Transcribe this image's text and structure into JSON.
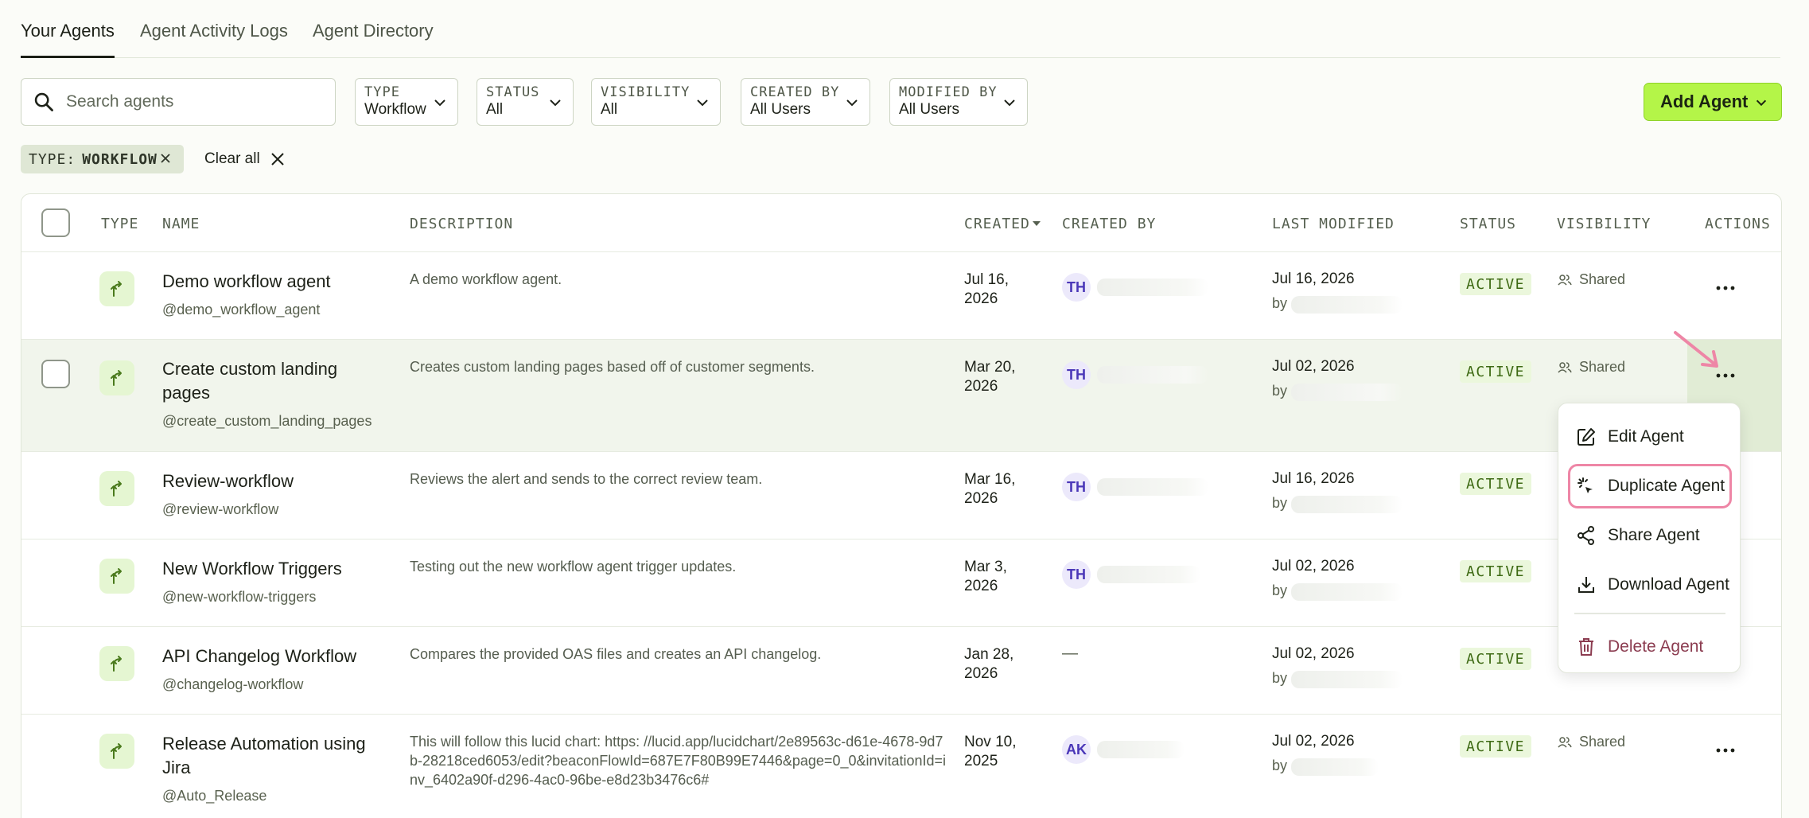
{
  "tabs": [
    {
      "label": "Your Agents",
      "active": true
    },
    {
      "label": "Agent Activity Logs",
      "active": false
    },
    {
      "label": "Agent Directory",
      "active": false
    }
  ],
  "search": {
    "placeholder": "Search agents"
  },
  "filters": [
    {
      "label": "TYPE",
      "value": "Workflow"
    },
    {
      "label": "STATUS",
      "value": "All"
    },
    {
      "label": "VISIBILITY",
      "value": "All"
    },
    {
      "label": "CREATED BY",
      "value": "All Users"
    },
    {
      "label": "MODIFIED BY",
      "value": "All Users"
    }
  ],
  "add_agent": {
    "label": "Add Agent"
  },
  "active_chip": {
    "key": "TYPE:",
    "value": "WORKFLOW"
  },
  "clear_all": "Clear all",
  "table": {
    "headers": {
      "type": "TYPE",
      "name": "NAME",
      "description": "DESCRIPTION",
      "created": "CREATED",
      "created_by": "CREATED BY",
      "last_modified": "LAST MODIFIED",
      "status": "STATUS",
      "visibility": "VISIBILITY",
      "actions": "ACTIONS"
    },
    "rows": [
      {
        "name": "Demo workflow agent",
        "handle": "@demo_workflow_agent",
        "description": "A demo workflow agent.",
        "created_line1": "Jul 16,",
        "created_line2": "2026",
        "creator_initials": "TH",
        "modified": "Jul 16, 2026",
        "modified_by": "by",
        "status": "ACTIVE",
        "visibility": "Shared"
      },
      {
        "name": "Create custom landing pages",
        "handle": "@create_custom_landing_pages",
        "description": "Creates custom landing pages based off of customer segments.",
        "created_line1": "Mar 20,",
        "created_line2": "2026",
        "creator_initials": "TH",
        "modified": "Jul 02, 2026",
        "modified_by": "by",
        "status": "ACTIVE",
        "visibility": "Shared"
      },
      {
        "name": "Review-workflow",
        "handle": "@review-workflow",
        "description": "Reviews the alert and sends to the correct review team.",
        "created_line1": "Mar 16,",
        "created_line2": "2026",
        "creator_initials": "TH",
        "modified": "Jul 16, 2026",
        "modified_by": "by",
        "status": "ACTIVE",
        "visibility": ""
      },
      {
        "name": "New Workflow Triggers",
        "handle": "@new-workflow-triggers",
        "description": "Testing out the new workflow agent trigger updates.",
        "created_line1": "Mar 3,",
        "created_line2": "2026",
        "creator_initials": "TH",
        "modified": "Jul 02, 2026",
        "modified_by": "by",
        "status": "ACTIVE",
        "visibility": ""
      },
      {
        "name": "API Changelog Workflow",
        "handle": "@changelog-workflow",
        "description": "Compares the provided OAS files and creates an API changelog.",
        "created_line1": "Jan 28,",
        "created_line2": "2026",
        "creator_initials": "—",
        "modified": "Jul 02, 2026",
        "modified_by": "by",
        "status": "ACTIVE",
        "visibility": ""
      },
      {
        "name": "Release Automation using Jira",
        "handle": "@Auto_Release",
        "description": "This will follow this lucid chart: https: //lucid.app/lucidchart/2e89563c-d61e-4678-9d7b-28218ced6053/edit?beaconFlowId=687E7F80B99E7446&page=0_0&invitationId=inv_6402a90f-d296-4ac0-96be-e8d23b3476c6#",
        "created_line1": "Nov 10,",
        "created_line2": "2025",
        "creator_initials": "AK",
        "modified": "Jul 02, 2026",
        "modified_by": "by",
        "status": "ACTIVE",
        "visibility": "Shared"
      }
    ]
  },
  "actions_menu": {
    "items": [
      {
        "label": "Edit Agent",
        "icon": "edit-icon"
      },
      {
        "label": "Duplicate Agent",
        "icon": "duplicate-icon"
      },
      {
        "label": "Share Agent",
        "icon": "share-icon"
      },
      {
        "label": "Download Agent",
        "icon": "download-icon"
      },
      {
        "label": "Delete Agent",
        "icon": "trash-icon"
      }
    ]
  },
  "colors": {
    "accent": "#b4f548",
    "status_text": "#3e6a14",
    "focus_ring": "#ee86a6",
    "danger": "#8b3c50"
  }
}
